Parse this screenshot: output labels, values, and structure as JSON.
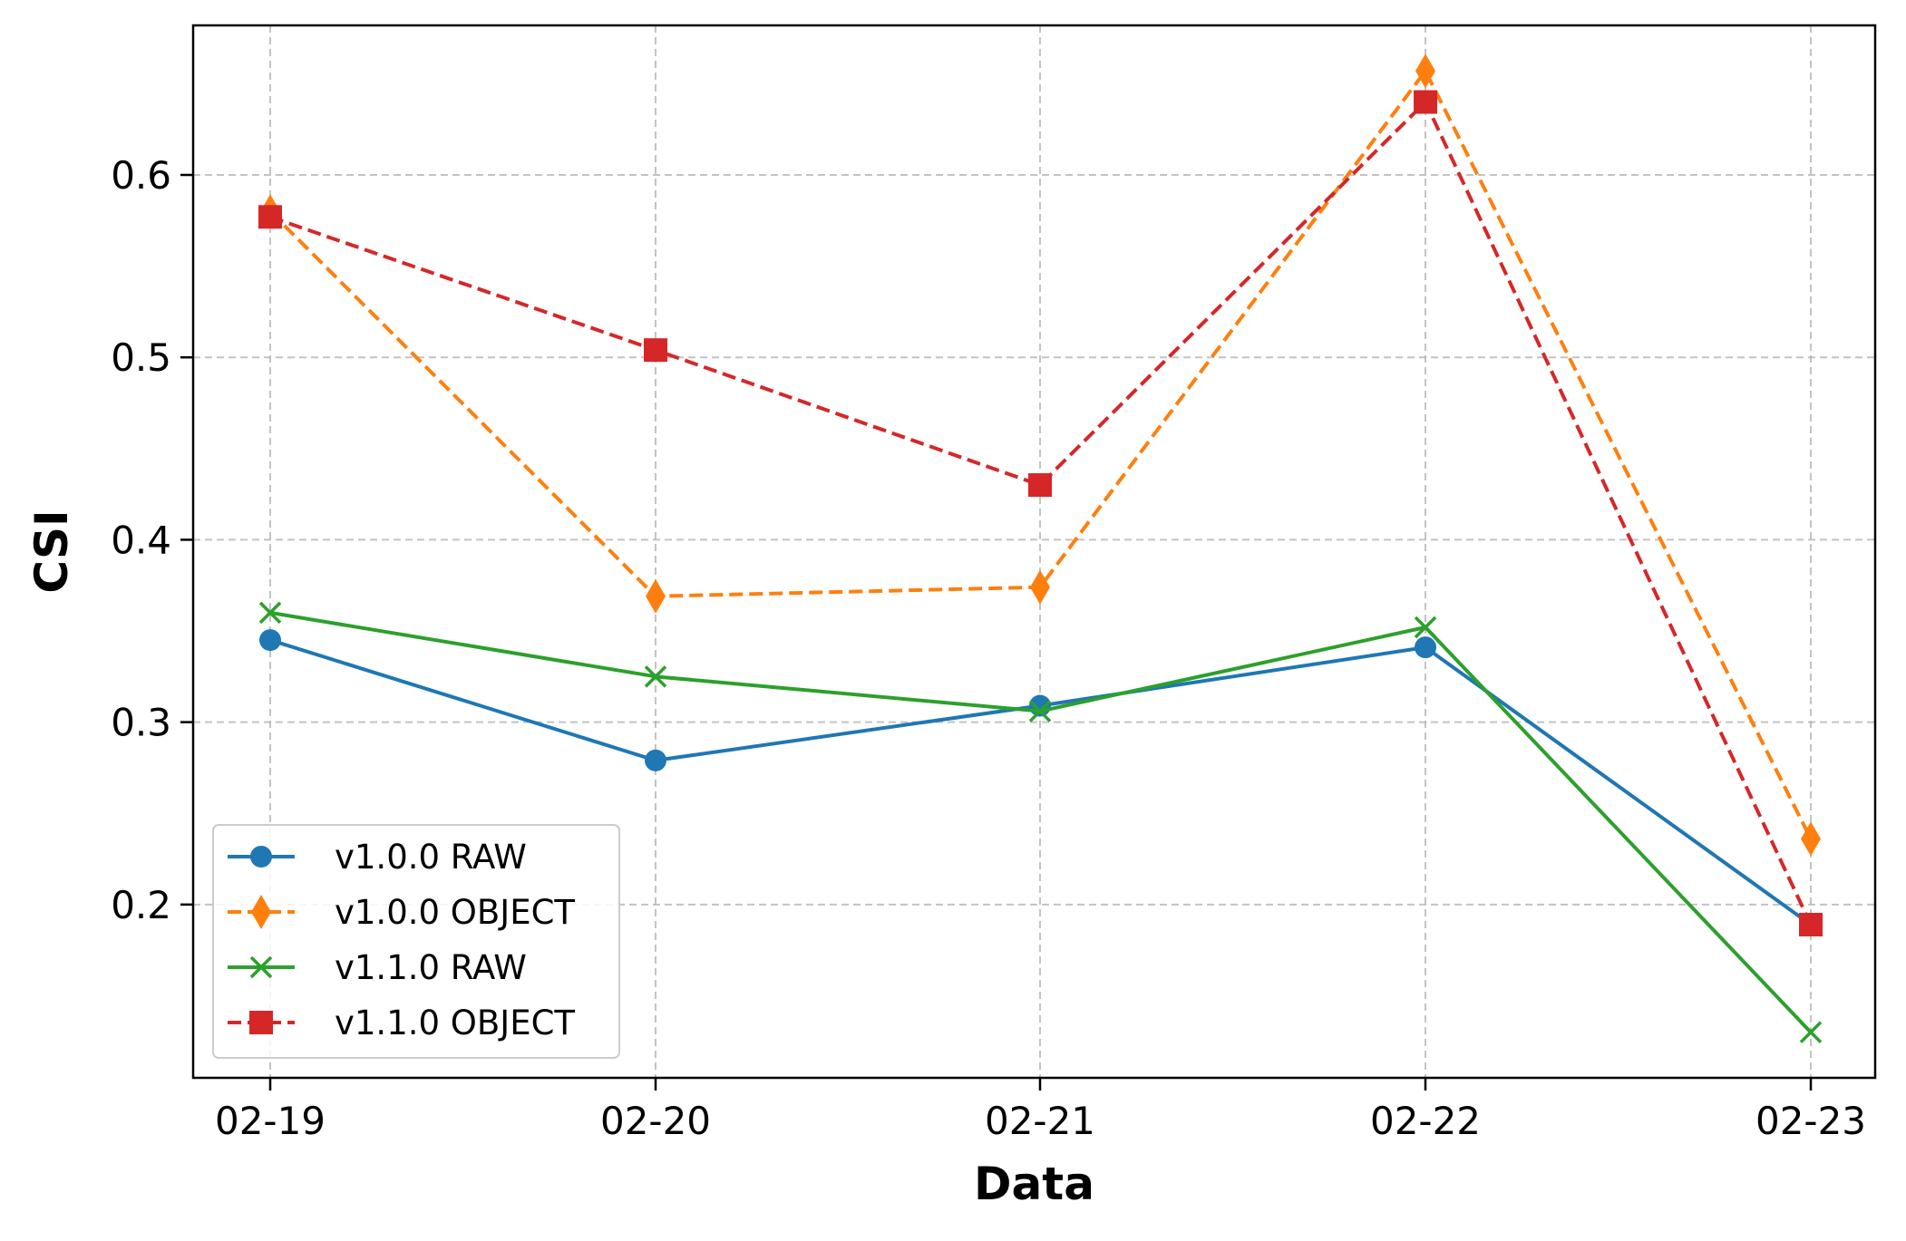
{
  "chart_data": {
    "type": "line",
    "title": "",
    "xlabel": "Data",
    "ylabel": "CSI",
    "categories": [
      "02-19",
      "02-20",
      "02-21",
      "02-22",
      "02-23"
    ],
    "ylim": [
      0.105,
      0.682
    ],
    "yticks": [
      0.2,
      0.3,
      0.4,
      0.5,
      0.6
    ],
    "ytick_labels": [
      "0.2",
      "0.3",
      "0.4",
      "0.5",
      "0.6"
    ],
    "grid": true,
    "legend_position": "lower-left",
    "series": [
      {
        "name": "v1.0.0 RAW",
        "values": [
          0.345,
          0.279,
          0.309,
          0.341,
          0.189
        ],
        "color": "#1f77b4",
        "linestyle": "solid",
        "marker": "circle"
      },
      {
        "name": "v1.0.0 OBJECT",
        "values": [
          0.58,
          0.369,
          0.374,
          0.657,
          0.236
        ],
        "color": "#ff7f0e",
        "linestyle": "dashed",
        "marker": "thin-diamond"
      },
      {
        "name": "v1.1.0 RAW",
        "values": [
          0.36,
          0.325,
          0.306,
          0.352,
          0.13
        ],
        "color": "#2ca02c",
        "linestyle": "solid",
        "marker": "x"
      },
      {
        "name": "v1.1.0 OBJECT",
        "values": [
          0.577,
          0.504,
          0.43,
          0.64,
          0.189
        ],
        "color": "#d62728",
        "linestyle": "dashed",
        "marker": "square"
      }
    ]
  }
}
